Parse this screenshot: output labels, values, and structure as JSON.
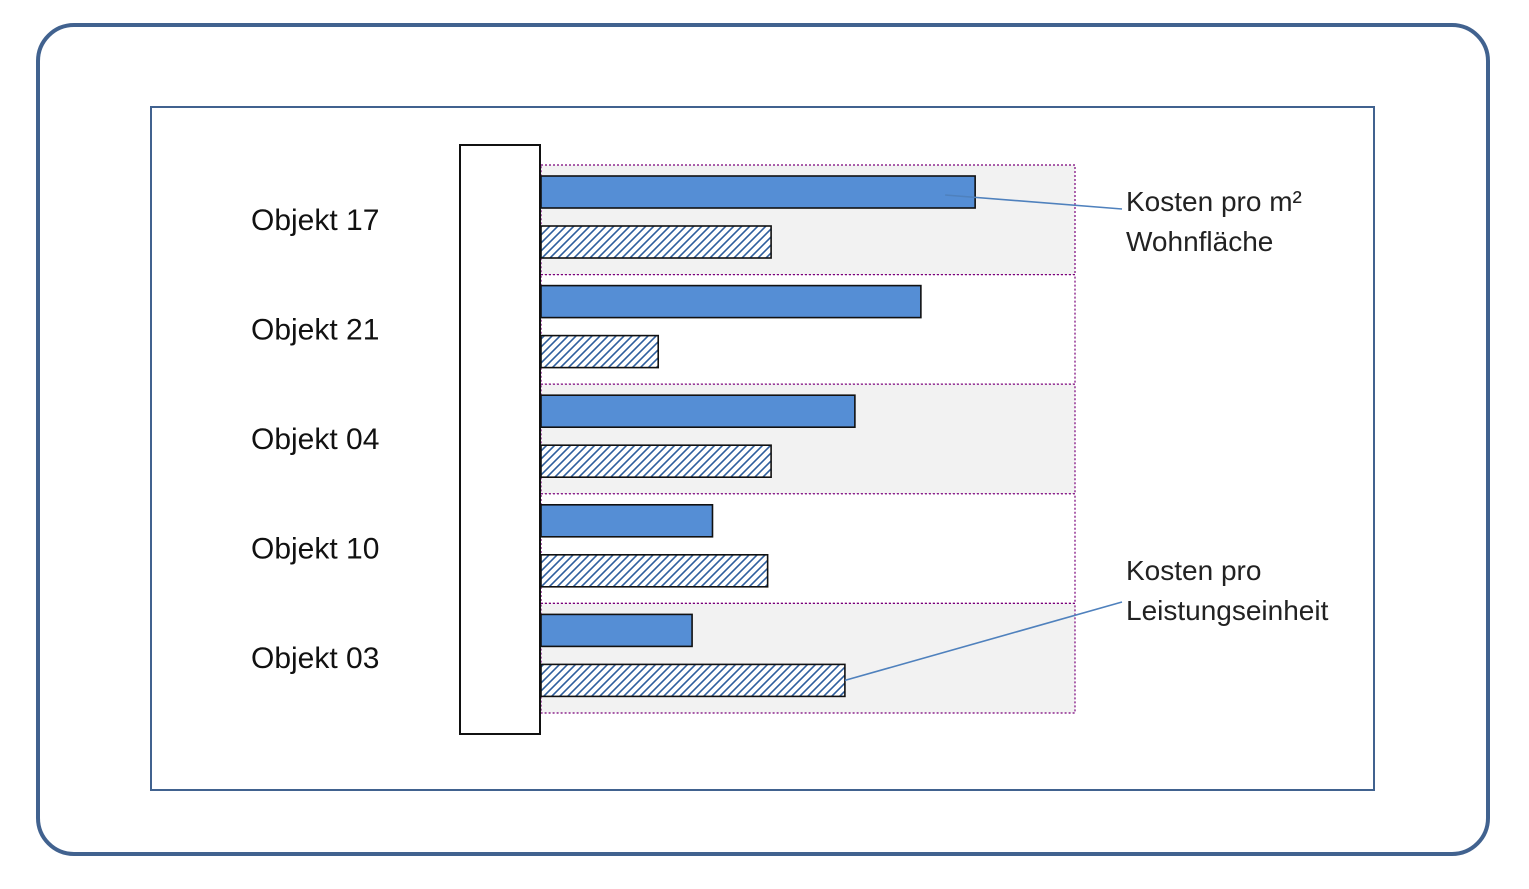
{
  "chart_data": {
    "type": "bar",
    "orientation": "horizontal",
    "categories": [
      "Objekt 17",
      "Objekt 21",
      "Objekt 04",
      "Objekt 10",
      "Objekt 03"
    ],
    "series": [
      {
        "name": "Kosten pro m² Wohnfläche",
        "name_lines": [
          "Kosten pro m²",
          "Wohnfläche"
        ],
        "values": [
          100,
          87.5,
          72.3,
          39.5,
          34.8
        ],
        "color": "#558ed5",
        "pattern": "solid"
      },
      {
        "name": "Kosten pro Leistungseinheit",
        "name_lines": [
          "Kosten pro",
          "Leistungseinheit"
        ],
        "values": [
          53,
          27,
          53,
          52.2,
          70
        ],
        "color": "#558ed5",
        "pattern": "hatched"
      }
    ],
    "xlim": [
      0,
      123
    ],
    "title": "",
    "xlabel": "",
    "ylabel": "",
    "grid": false,
    "legend": "right",
    "colors": {
      "frame_outer": "#41628f",
      "frame_inner": "#41628f",
      "band_fill": "#f2f2f2",
      "band_border": "#7a007a",
      "bar_stroke": "#111111",
      "hatch_line": "#2f5f9e",
      "leader_line": "#4f81bd"
    }
  }
}
